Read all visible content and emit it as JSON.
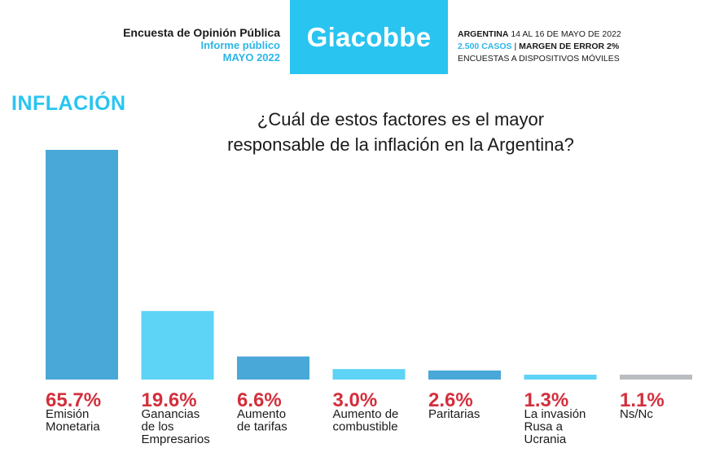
{
  "header": {
    "line1": "Encuesta de Opinión Pública",
    "line2": "Informe público",
    "line3": "MAYO 2022",
    "logo": "Giacobbe",
    "info1_bold": "ARGENTINA",
    "info1_rest": " 14 AL 16 DE MAYO DE 2022",
    "info2_cases": "2.500 CASOS",
    "info2_sep": " | ",
    "info2_margin": "MARGEN DE ERROR 2%",
    "info3": "ENCUESTAS A DISPOSITIVOS MÓVILES"
  },
  "section_title": "INFLACIÓN",
  "question_line1": "¿Cuál de estos factores es el mayor",
  "question_line2": "responsable de la inflación en la Argentina?",
  "colors": {
    "accent": "#29c4f0",
    "value_red": "#d32f3c"
  },
  "chart_data": {
    "type": "bar",
    "categories": [
      [
        "Emisión",
        "Monetaria"
      ],
      [
        "Ganancias",
        "de los",
        "Empresarios"
      ],
      [
        "Aumento",
        "de tarifas"
      ],
      [
        "Aumento de",
        "combustible"
      ],
      [
        "Paritarias"
      ],
      [
        "La invasión",
        "Rusa a",
        "Ucrania"
      ],
      [
        "Ns/Nc"
      ]
    ],
    "values": [
      65.7,
      19.6,
      6.6,
      3.0,
      2.6,
      1.3,
      1.1
    ],
    "value_labels": [
      "65.7%",
      "19.6%",
      "6.6%",
      "3.0%",
      "2.6%",
      "1.3%",
      "1.1%"
    ],
    "bar_colors": [
      "#4aa8d8",
      "#5dd3f5",
      "#4aa8d8",
      "#5dd3f5",
      "#4aa8d8",
      "#5dd3f5",
      "#b9bcc1"
    ],
    "ylim": [
      0,
      65.7
    ],
    "grid": false,
    "legend": "none"
  }
}
